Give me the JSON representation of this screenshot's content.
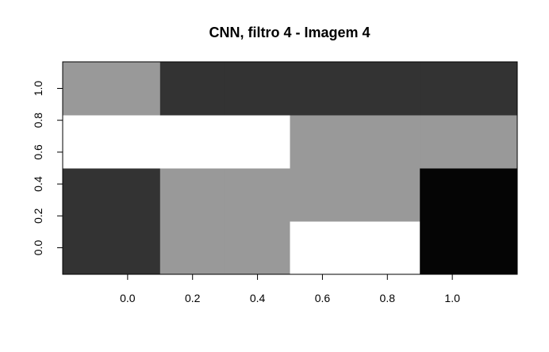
{
  "chart_data": {
    "type": "heatmap",
    "title": "CNN, filtro 4 - Imagem 4",
    "xlabel": "",
    "ylabel": "",
    "x_ticks": [
      "0.0",
      "0.2",
      "0.4",
      "0.6",
      "0.8",
      "1.0"
    ],
    "y_ticks": [
      "0.0",
      "0.2",
      "0.4",
      "0.6",
      "0.8",
      "1.0"
    ],
    "x_tick_values": [
      0.0,
      0.2,
      0.4,
      0.6,
      0.8,
      1.0
    ],
    "y_tick_values": [
      0.0,
      0.2,
      0.4,
      0.6,
      0.8,
      1.0
    ],
    "xlim": [
      -0.2,
      1.2
    ],
    "ylim": [
      -0.1667,
      1.1667
    ],
    "x_centers": [
      0.0,
      0.2,
      0.4,
      0.6,
      0.8,
      1.0
    ],
    "y_centers": [
      0.0,
      0.3333,
      0.6667,
      1.0
    ],
    "grid": false,
    "rows_bottom_to_top": [
      [
        "#333333",
        "#999999",
        "#999999",
        "#ffffff",
        "#ffffff",
        "#050505"
      ],
      [
        "#333333",
        "#999999",
        "#999999",
        "#999999",
        "#999999",
        "#050505"
      ],
      [
        "#ffffff",
        "#ffffff",
        "#ffffff",
        "#999999",
        "#999999",
        "#999999"
      ],
      [
        "#999999",
        "#333333",
        "#333333",
        "#333333",
        "#333333",
        "#333333"
      ]
    ]
  }
}
